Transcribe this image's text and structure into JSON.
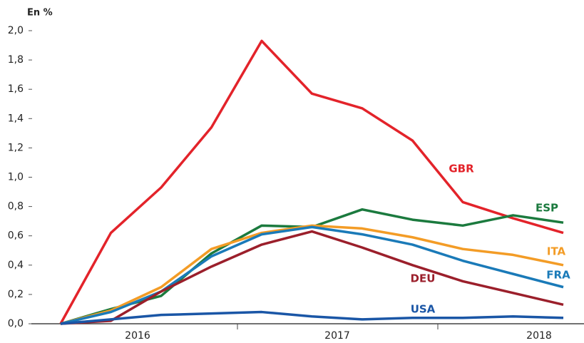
{
  "chart_data": {
    "type": "line",
    "y_label": "En %",
    "x_groups": [
      "2016",
      "2017",
      "2018"
    ],
    "categories": [
      null,
      null,
      null,
      null,
      null,
      null,
      null,
      null,
      null,
      null,
      null
    ],
    "series": [
      {
        "name": "GBR",
        "color": "#e3232a",
        "values": [
          0,
          0.62,
          0.93,
          1.34,
          1.93,
          1.57,
          1.47,
          1.25,
          0.83,
          0.72,
          0.62
        ]
      },
      {
        "name": "ESP",
        "color": "#1b7a3e",
        "values": [
          0,
          0.1,
          0.19,
          0.48,
          0.67,
          0.66,
          0.78,
          0.71,
          0.67,
          0.74,
          0.69
        ]
      },
      {
        "name": "ITA",
        "color": "#f39c26",
        "values": [
          0,
          0.09,
          0.25,
          0.51,
          0.62,
          0.67,
          0.65,
          0.59,
          0.51,
          0.47,
          0.4
        ]
      },
      {
        "name": "FRA",
        "color": "#1a7ab8",
        "values": [
          0,
          0.08,
          0.22,
          0.46,
          0.61,
          0.66,
          0.61,
          0.54,
          0.43,
          0.34,
          0.25
        ]
      },
      {
        "name": "DEU",
        "color": "#9b1f2b",
        "values": [
          0,
          0.02,
          0.22,
          0.39,
          0.54,
          0.63,
          0.52,
          0.4,
          0.29,
          0.21,
          0.13
        ]
      },
      {
        "name": "USA",
        "color": "#1a56a6",
        "values": [
          0,
          0.03,
          0.06,
          0.07,
          0.08,
          0.05,
          0.03,
          0.04,
          0.04,
          0.05,
          0.04
        ]
      }
    ],
    "ylim": [
      0,
      2.0
    ],
    "yticks": [
      {
        "value": 0,
        "label": "0,0"
      },
      {
        "value": 0.2,
        "label": "0,2"
      },
      {
        "value": 0.4,
        "label": "0,4"
      },
      {
        "value": 0.6,
        "label": "0,6"
      },
      {
        "value": 0.8,
        "label": "0,8"
      },
      {
        "value": 1.0,
        "label": "1,0"
      },
      {
        "value": 1.2,
        "label": "1,2"
      },
      {
        "value": 1.4,
        "label": "1,4"
      },
      {
        "value": 1.6,
        "label": "1,6"
      },
      {
        "value": 1.8,
        "label": "1,8"
      },
      {
        "value": 2.0,
        "label": "2,0"
      }
    ],
    "grid": false
  }
}
